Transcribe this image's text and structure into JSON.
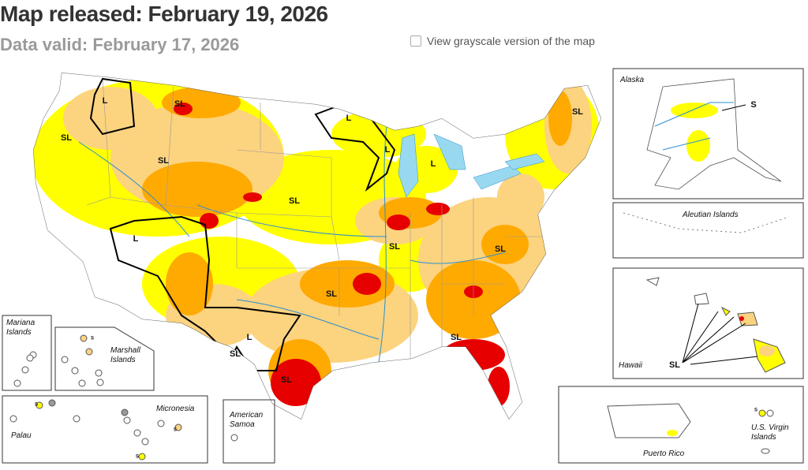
{
  "header": {
    "title": "Map released: February 19, 2026",
    "subtitle": "Data valid: February 17, 2026"
  },
  "checkbox": {
    "label": "View grayscale version of the map"
  },
  "insets": {
    "alaska": "Alaska",
    "aleutian": "Aleutian Islands",
    "hawaii": "Hawaii",
    "puerto_rico": "Puerto Rico",
    "virgin_islands": [
      "U.S. Virgin",
      "Islands"
    ],
    "mariana": [
      "Mariana",
      "Islands"
    ],
    "marshall": [
      "Marshall",
      "Islands"
    ],
    "palau": "Palau",
    "micronesia": "Micronesia",
    "samoa": [
      "American",
      "Samoa"
    ]
  },
  "map_labels": [
    "L",
    "SL",
    "L",
    "SL",
    "SL",
    "L",
    "L",
    "SL",
    "SL",
    "L",
    "SL",
    "SL",
    "SL",
    "L",
    "SL",
    "SL",
    "SL",
    "S",
    "SL",
    "S",
    "S",
    "S",
    "S",
    "S"
  ]
}
